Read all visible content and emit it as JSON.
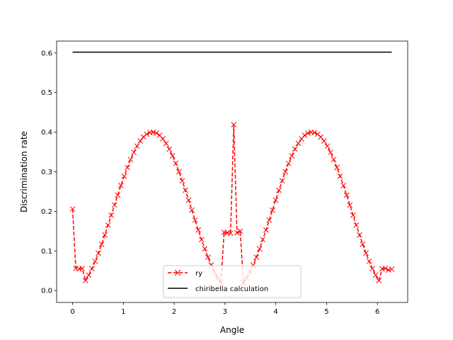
{
  "chart_data": {
    "type": "line",
    "title": "",
    "xlabel": "Angle",
    "ylabel": "Discrimination rate",
    "xlim": [
      -0.314,
      6.597
    ],
    "ylim": [
      -0.03,
      0.63
    ],
    "xticks": [
      0,
      1,
      2,
      3,
      4,
      5,
      6
    ],
    "yticks": [
      0.0,
      0.1,
      0.2,
      0.3,
      0.4,
      0.5,
      0.6
    ],
    "xtick_labels": [
      "0",
      "1",
      "2",
      "3",
      "4",
      "5",
      "6"
    ],
    "ytick_labels": [
      "0.0",
      "0.1",
      "0.2",
      "0.3",
      "0.4",
      "0.5",
      "0.6"
    ],
    "grid": false,
    "legend_position": "lower center",
    "series": [
      {
        "name": "ry",
        "color": "#ff0000",
        "style": "dashed",
        "marker": "x",
        "generator": "sampled",
        "x_start": 0,
        "x_end": 6.2832,
        "count": 100,
        "base_formula": "0.4*sin(x)^2",
        "overrides": [
          {
            "x": 0.0,
            "y": 0.206
          },
          {
            "x": 0.063,
            "y": 0.056
          },
          {
            "x": 0.127,
            "y": 0.055
          },
          {
            "x": 0.19,
            "y": 0.056
          },
          {
            "x": 2.983,
            "y": 0.147
          },
          {
            "x": 3.046,
            "y": 0.146
          },
          {
            "x": 3.11,
            "y": 0.145
          },
          {
            "x": 3.173,
            "y": 0.419
          },
          {
            "x": 3.237,
            "y": 0.146
          },
          {
            "x": 3.3,
            "y": 0.15
          },
          {
            "x": 6.093,
            "y": 0.055
          },
          {
            "x": 6.156,
            "y": 0.056
          },
          {
            "x": 6.22,
            "y": 0.052
          },
          {
            "x": 6.283,
            "y": 0.054
          }
        ]
      },
      {
        "name": "chiribella calculation",
        "color": "#000000",
        "style": "solid",
        "marker": "none",
        "x": [
          0,
          6.2832
        ],
        "y": [
          0.602,
          0.602
        ]
      }
    ]
  }
}
